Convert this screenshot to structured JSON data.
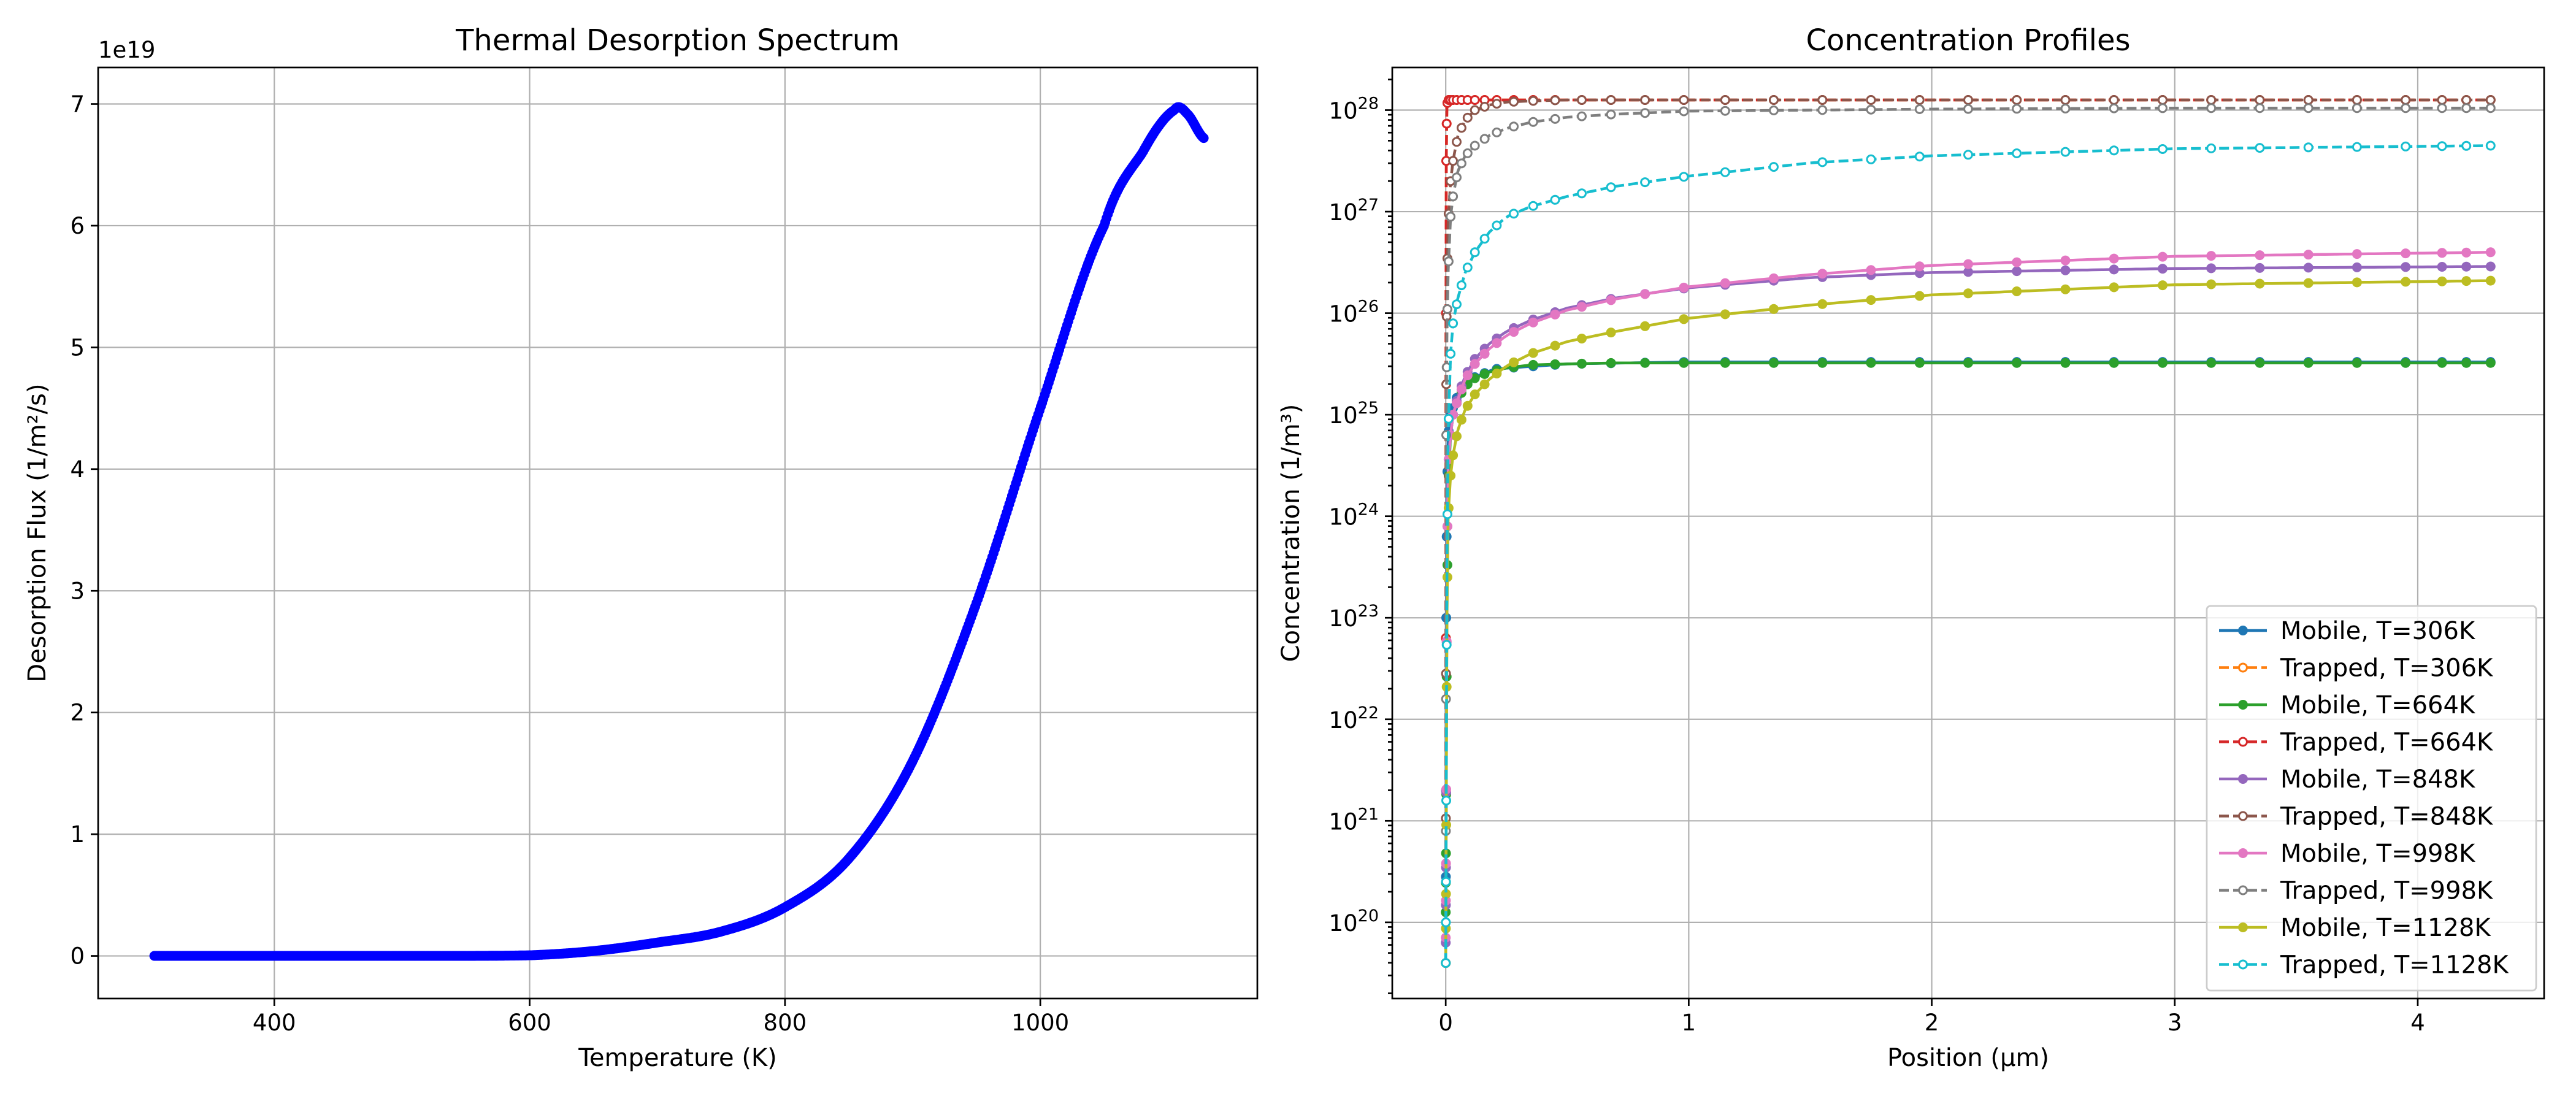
{
  "chart_data": [
    {
      "type": "scatter",
      "title": "Thermal Desorption Spectrum",
      "xlabel": "Temperature (K)",
      "ylabel": "Desorption Flux (1/m²/s)",
      "offset_text": "1e19",
      "xlim": [
        262,
        1170
      ],
      "ylim": [
        -0.35,
        7.3
      ],
      "y_scale_factor": 1e+19,
      "xticks": [
        400,
        600,
        800,
        1000
      ],
      "yticks": [
        0,
        1,
        2,
        3,
        4,
        5,
        6,
        7
      ],
      "grid": true,
      "color": "#0000ff",
      "x_start": 306,
      "x_end": 1128,
      "n_points": 800,
      "curve_samples": {
        "x": [
          306,
          400,
          500,
          600,
          650,
          700,
          750,
          800,
          850,
          900,
          950,
          1000,
          1050,
          1080,
          1105,
          1115,
          1128
        ],
        "y": [
          0,
          0,
          0,
          0.005,
          0.04,
          0.11,
          0.2,
          0.4,
          0.8,
          1.6,
          2.9,
          4.5,
          6.0,
          6.6,
          6.95,
          6.92,
          6.72
        ]
      }
    },
    {
      "type": "line",
      "title": "Concentration Profiles",
      "xlabel": "Position (μm)",
      "ylabel": "Concentration (1/m³)",
      "xlim": [
        -0.22,
        4.52
      ],
      "ylim_log10": [
        19.25,
        28.42
      ],
      "yscale": "log",
      "xticks": [
        0,
        1,
        2,
        3,
        4
      ],
      "yticks_exp": [
        20,
        21,
        22,
        23,
        24,
        25,
        26,
        27,
        28
      ],
      "grid": true,
      "legend_position": "lower right",
      "x_end": 4.3,
      "series": [
        {
          "name": "Mobile, T=306K",
          "color": "#1f77b4",
          "dashed": false,
          "hollow": false,
          "x": [
            0,
            0.002,
            0.005,
            0.01,
            0.02,
            0.05,
            0.1,
            0.2,
            0.5,
            1,
            2,
            3,
            4.3
          ],
          "log10y": [
            19.6,
            23.0,
            24.2,
            24.8,
            25.0,
            25.2,
            25.35,
            25.45,
            25.5,
            25.52,
            25.52,
            25.52,
            25.52
          ]
        },
        {
          "name": "Trapped, T=306K",
          "color": "#ff7f0e",
          "dashed": true,
          "hollow": true,
          "x": [
            0,
            0.001,
            0.002,
            0.005,
            0.01,
            0.02,
            0.05,
            4.3
          ],
          "log10y": [
            19.6,
            26.0,
            27.5,
            28.05,
            28.1,
            28.1,
            28.1,
            28.1
          ]
        },
        {
          "name": "Mobile, T=664K",
          "color": "#2ca02c",
          "dashed": false,
          "hollow": false,
          "x": [
            0,
            0.005,
            0.01,
            0.02,
            0.03,
            0.05,
            0.08,
            0.12,
            0.18,
            0.25,
            0.35,
            0.5,
            0.7,
            1,
            1.5,
            2,
            3,
            4.3
          ],
          "log10y": [
            20.1,
            23.0,
            24.3,
            24.8,
            25.0,
            25.15,
            25.28,
            25.36,
            25.42,
            25.46,
            25.49,
            25.5,
            25.51,
            25.51,
            25.51,
            25.51,
            25.51,
            25.51
          ]
        },
        {
          "name": "Trapped, T=664K",
          "color": "#d62728",
          "dashed": true,
          "hollow": true,
          "x": [
            0,
            0.001,
            0.002,
            0.005,
            0.01,
            0.02,
            0.05,
            0.1,
            4.3
          ],
          "log10y": [
            19.6,
            26.0,
            27.5,
            28.05,
            28.1,
            28.1,
            28.1,
            28.1,
            28.1
          ]
        },
        {
          "name": "Mobile, T=848K",
          "color": "#9467bd",
          "dashed": false,
          "hollow": false,
          "x": [
            0,
            0.005,
            0.01,
            0.02,
            0.03,
            0.05,
            0.08,
            0.12,
            0.18,
            0.25,
            0.35,
            0.5,
            0.7,
            1,
            1.5,
            2,
            3,
            4.3
          ],
          "log10y": [
            19.8,
            23.5,
            24.5,
            24.8,
            25.0,
            25.18,
            25.38,
            25.55,
            25.7,
            25.82,
            25.93,
            26.05,
            26.15,
            26.25,
            26.35,
            26.4,
            26.44,
            26.46
          ]
        },
        {
          "name": "Trapped, T=848K",
          "color": "#8c564b",
          "dashed": true,
          "hollow": true,
          "x": [
            0,
            0.002,
            0.005,
            0.01,
            0.02,
            0.03,
            0.05,
            0.08,
            0.12,
            0.18,
            0.25,
            0.35,
            0.5,
            0.8,
            1.2,
            2,
            3,
            4.3
          ],
          "log10y": [
            19.6,
            25.3,
            26.3,
            26.9,
            27.3,
            27.5,
            27.75,
            27.9,
            28.0,
            28.05,
            28.08,
            28.09,
            28.1,
            28.1,
            28.1,
            28.1,
            28.1,
            28.1
          ]
        },
        {
          "name": "Mobile, T=998K",
          "color": "#e377c2",
          "dashed": false,
          "hollow": false,
          "x": [
            0,
            0.005,
            0.01,
            0.02,
            0.03,
            0.05,
            0.08,
            0.12,
            0.18,
            0.25,
            0.35,
            0.5,
            0.7,
            1,
            1.5,
            2,
            3,
            4.3
          ],
          "log10y": [
            19.85,
            23.5,
            24.5,
            24.8,
            25.0,
            25.15,
            25.35,
            25.5,
            25.65,
            25.78,
            25.9,
            26.03,
            26.14,
            26.26,
            26.38,
            26.47,
            26.56,
            26.6
          ]
        },
        {
          "name": "Trapped, T=998K",
          "color": "#7f7f7f",
          "dashed": true,
          "hollow": true,
          "x": [
            0,
            0.002,
            0.005,
            0.01,
            0.02,
            0.03,
            0.05,
            0.08,
            0.12,
            0.18,
            0.25,
            0.35,
            0.5,
            0.7,
            1,
            1.5,
            2,
            3,
            4.3
          ],
          "log10y": [
            19.6,
            24.8,
            25.8,
            26.4,
            26.95,
            27.15,
            27.4,
            27.55,
            27.65,
            27.75,
            27.82,
            27.88,
            27.93,
            27.96,
            27.99,
            28.0,
            28.01,
            28.02,
            28.02
          ]
        },
        {
          "name": "Mobile, T=1128K",
          "color": "#bcbd22",
          "dashed": false,
          "hollow": false,
          "x": [
            0,
            0.005,
            0.01,
            0.02,
            0.03,
            0.05,
            0.08,
            0.12,
            0.18,
            0.25,
            0.35,
            0.5,
            0.7,
            1,
            1.5,
            2,
            3,
            4.3
          ],
          "log10y": [
            19.6,
            23.0,
            24.0,
            24.4,
            24.6,
            24.85,
            25.05,
            25.2,
            25.35,
            25.48,
            25.6,
            25.72,
            25.82,
            25.95,
            26.08,
            26.18,
            26.28,
            26.32
          ]
        },
        {
          "name": "Trapped, T=1128K",
          "color": "#17becf",
          "dashed": true,
          "hollow": true,
          "x": [
            0,
            0.002,
            0.005,
            0.01,
            0.02,
            0.03,
            0.05,
            0.08,
            0.12,
            0.18,
            0.25,
            0.35,
            0.5,
            0.7,
            1,
            1.5,
            2,
            3,
            4.3
          ],
          "log10y": [
            19.6,
            21.2,
            23.5,
            24.8,
            25.6,
            25.9,
            26.15,
            26.4,
            26.6,
            26.8,
            26.95,
            27.05,
            27.15,
            27.25,
            27.35,
            27.48,
            27.55,
            27.62,
            27.65
          ]
        }
      ]
    }
  ]
}
